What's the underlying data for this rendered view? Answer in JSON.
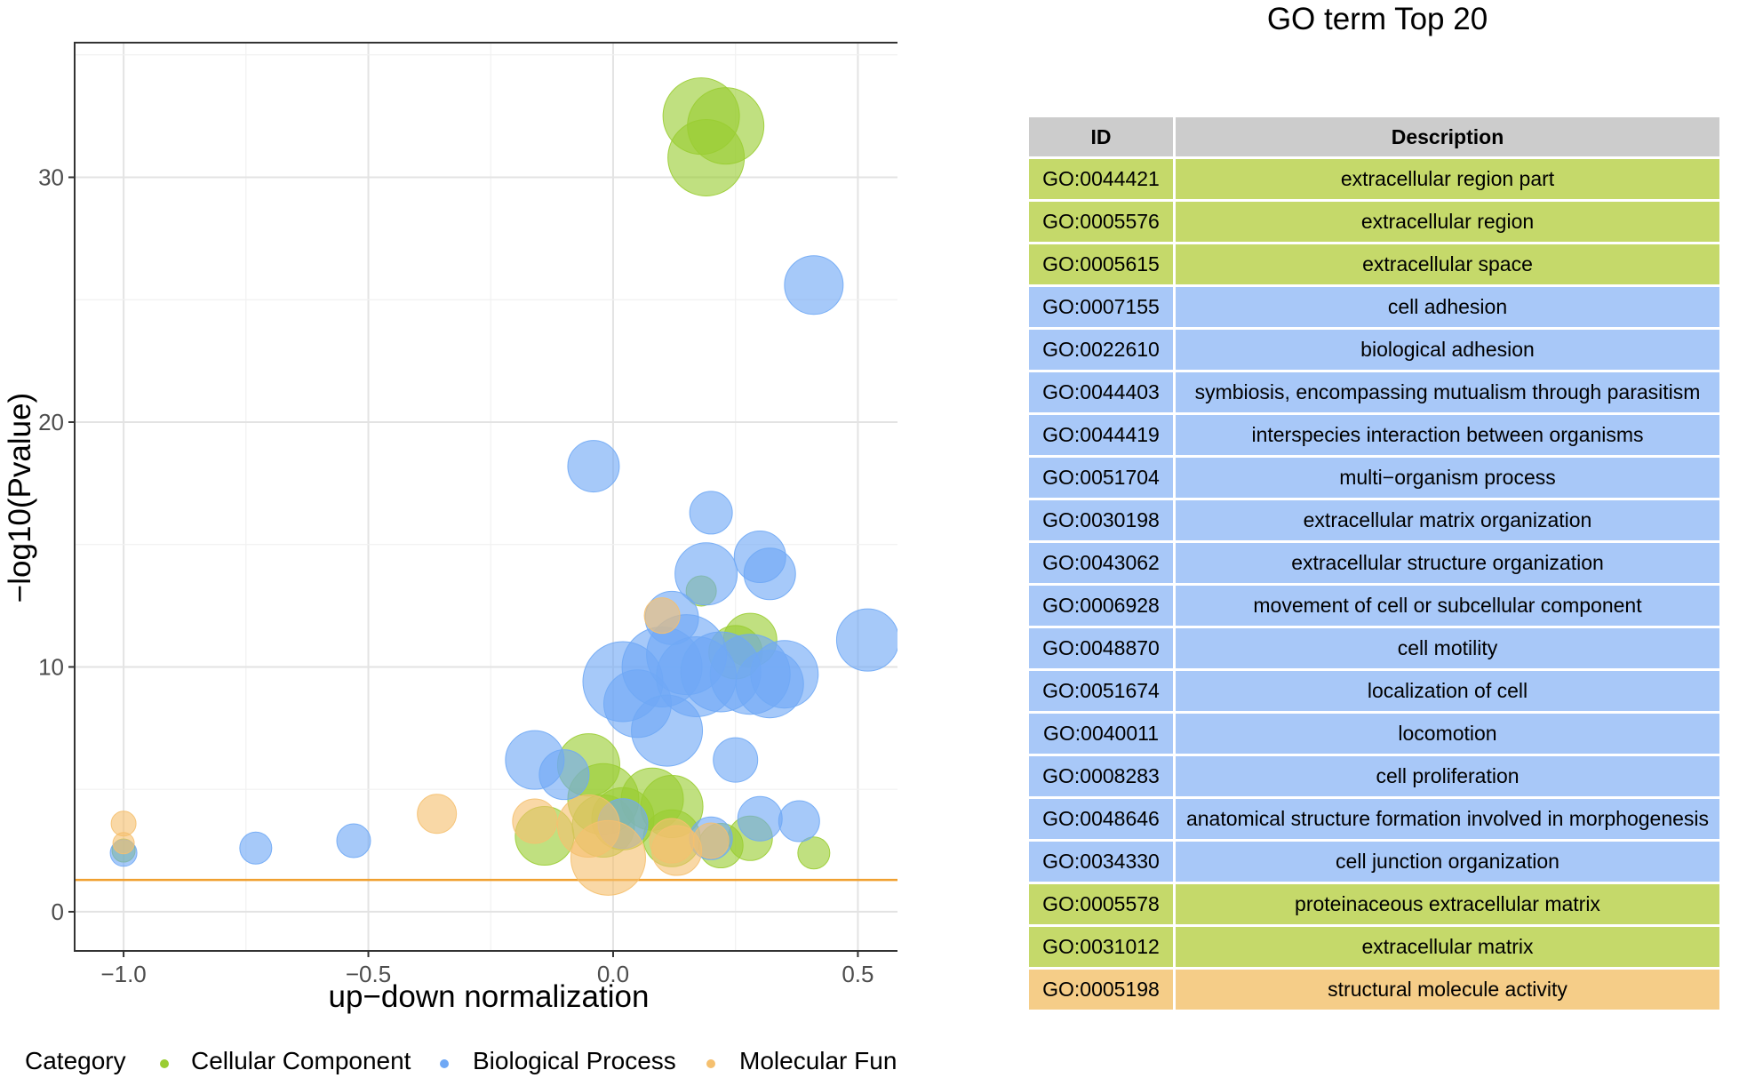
{
  "chart_data": {
    "type": "scatter",
    "xlabel": "up−down normalization",
    "ylabel": "−log10(Pvalue)",
    "xlim": [
      -1.1,
      0.59
    ],
    "ylim": [
      -1.6,
      35.5
    ],
    "x_ticks": [
      -1.0,
      -0.5,
      0.0,
      0.5
    ],
    "x_tick_labels": [
      "−1.0",
      "−0.5",
      "0.0",
      "0.5"
    ],
    "y_ticks": [
      0,
      10,
      20,
      30
    ],
    "y_tick_labels": [
      "0",
      "10",
      "20",
      "30"
    ],
    "threshold_line": {
      "y": 1.3,
      "color": "#f0a030"
    },
    "grid": true,
    "legend": {
      "title": "Category",
      "placement": "bottom",
      "entries": [
        {
          "label": "Cellular Component",
          "color": "#9acd32"
        },
        {
          "label": "Biological Process",
          "color": "#6fa8f5"
        },
        {
          "label": "Molecular Function",
          "color": "#f5c06f"
        }
      ]
    },
    "series": [
      {
        "name": "Cellular Component",
        "color": "#9acd32",
        "points": [
          {
            "x": 0.18,
            "y": 32.5,
            "size": 43
          },
          {
            "x": 0.23,
            "y": 32.1,
            "size": 43
          },
          {
            "x": 0.19,
            "y": 30.8,
            "size": 43
          },
          {
            "x": 0.18,
            "y": 13.1,
            "size": 17
          },
          {
            "x": 0.28,
            "y": 11.1,
            "size": 30
          },
          {
            "x": 0.25,
            "y": 10.6,
            "size": 30
          },
          {
            "x": -0.05,
            "y": 6.0,
            "size": 35
          },
          {
            "x": -0.02,
            "y": 4.6,
            "size": 40
          },
          {
            "x": 0.08,
            "y": 4.6,
            "size": 35
          },
          {
            "x": 0.12,
            "y": 4.3,
            "size": 35
          },
          {
            "x": 0.02,
            "y": 3.8,
            "size": 35
          },
          {
            "x": -0.14,
            "y": 3.1,
            "size": 33
          },
          {
            "x": 0.28,
            "y": 3.0,
            "size": 25
          },
          {
            "x": 0.12,
            "y": 3.0,
            "size": 32
          },
          {
            "x": 0.22,
            "y": 2.7,
            "size": 25
          },
          {
            "x": 0.41,
            "y": 2.4,
            "size": 18
          },
          {
            "x": -1.0,
            "y": 2.5,
            "size": 13
          },
          {
            "x": -0.02,
            "y": 3.5,
            "size": 35
          }
        ]
      },
      {
        "name": "Biological Process",
        "color": "#6fa8f5",
        "points": [
          {
            "x": 0.41,
            "y": 25.6,
            "size": 33
          },
          {
            "x": -0.04,
            "y": 18.2,
            "size": 29
          },
          {
            "x": 0.2,
            "y": 16.3,
            "size": 24
          },
          {
            "x": 0.3,
            "y": 14.5,
            "size": 29
          },
          {
            "x": 0.32,
            "y": 13.8,
            "size": 29
          },
          {
            "x": 0.19,
            "y": 13.8,
            "size": 35
          },
          {
            "x": 0.52,
            "y": 11.1,
            "size": 35
          },
          {
            "x": 0.02,
            "y": 9.4,
            "size": 45
          },
          {
            "x": 0.05,
            "y": 8.5,
            "size": 38
          },
          {
            "x": 0.1,
            "y": 10.0,
            "size": 45
          },
          {
            "x": 0.15,
            "y": 10.5,
            "size": 45
          },
          {
            "x": 0.17,
            "y": 9.6,
            "size": 45
          },
          {
            "x": 0.22,
            "y": 9.8,
            "size": 45
          },
          {
            "x": 0.28,
            "y": 9.7,
            "size": 45
          },
          {
            "x": 0.32,
            "y": 9.3,
            "size": 38
          },
          {
            "x": 0.35,
            "y": 9.7,
            "size": 38
          },
          {
            "x": 0.12,
            "y": 12.0,
            "size": 30
          },
          {
            "x": 0.11,
            "y": 7.4,
            "size": 40
          },
          {
            "x": 0.25,
            "y": 6.2,
            "size": 25
          },
          {
            "x": -0.16,
            "y": 6.2,
            "size": 33
          },
          {
            "x": -0.1,
            "y": 5.6,
            "size": 28
          },
          {
            "x": 0.3,
            "y": 3.8,
            "size": 25
          },
          {
            "x": 0.38,
            "y": 3.7,
            "size": 23
          },
          {
            "x": 0.02,
            "y": 3.6,
            "size": 28
          },
          {
            "x": 0.2,
            "y": 3.0,
            "size": 24
          },
          {
            "x": -0.73,
            "y": 2.6,
            "size": 18
          },
          {
            "x": -0.53,
            "y": 2.9,
            "size": 19
          },
          {
            "x": -1.0,
            "y": 2.4,
            "size": 15
          }
        ]
      },
      {
        "name": "Molecular Function",
        "color": "#f5c06f",
        "points": [
          {
            "x": -1.0,
            "y": 3.6,
            "size": 14
          },
          {
            "x": -1.0,
            "y": 2.8,
            "size": 12
          },
          {
            "x": -0.36,
            "y": 4.0,
            "size": 22
          },
          {
            "x": -0.16,
            "y": 3.7,
            "size": 25
          },
          {
            "x": 0.1,
            "y": 12.1,
            "size": 20
          },
          {
            "x": -0.01,
            "y": 2.2,
            "size": 42
          },
          {
            "x": -0.05,
            "y": 3.5,
            "size": 35
          },
          {
            "x": 0.12,
            "y": 2.9,
            "size": 25
          },
          {
            "x": 0.13,
            "y": 2.5,
            "size": 28
          },
          {
            "x": 0.2,
            "y": 2.9,
            "size": 20
          }
        ]
      }
    ]
  },
  "table": {
    "title": "GO term Top 20",
    "headers": {
      "id": "ID",
      "description": "Description"
    },
    "rows": [
      {
        "id": "GO:0044421",
        "description": "extracellular region part",
        "category": "Cellular Component"
      },
      {
        "id": "GO:0005576",
        "description": "extracellular region",
        "category": "Cellular Component"
      },
      {
        "id": "GO:0005615",
        "description": "extracellular space",
        "category": "Cellular Component"
      },
      {
        "id": "GO:0007155",
        "description": "cell adhesion",
        "category": "Biological Process"
      },
      {
        "id": "GO:0022610",
        "description": "biological adhesion",
        "category": "Biological Process"
      },
      {
        "id": "GO:0044403",
        "description": "symbiosis, encompassing mutualism through parasitism",
        "category": "Biological Process"
      },
      {
        "id": "GO:0044419",
        "description": "interspecies interaction between organisms",
        "category": "Biological Process"
      },
      {
        "id": "GO:0051704",
        "description": "multi−organism process",
        "category": "Biological Process"
      },
      {
        "id": "GO:0030198",
        "description": "extracellular matrix organization",
        "category": "Biological Process"
      },
      {
        "id": "GO:0043062",
        "description": "extracellular structure organization",
        "category": "Biological Process"
      },
      {
        "id": "GO:0006928",
        "description": "movement of cell or subcellular component",
        "category": "Biological Process"
      },
      {
        "id": "GO:0048870",
        "description": "cell motility",
        "category": "Biological Process"
      },
      {
        "id": "GO:0051674",
        "description": "localization of cell",
        "category": "Biological Process"
      },
      {
        "id": "GO:0040011",
        "description": "locomotion",
        "category": "Biological Process"
      },
      {
        "id": "GO:0008283",
        "description": "cell proliferation",
        "category": "Biological Process"
      },
      {
        "id": "GO:0048646",
        "description": "anatomical structure formation involved in morphogenesis",
        "category": "Biological Process"
      },
      {
        "id": "GO:0034330",
        "description": "cell junction organization",
        "category": "Biological Process"
      },
      {
        "id": "GO:0005578",
        "description": "proteinaceous extracellular matrix",
        "category": "Cellular Component"
      },
      {
        "id": "GO:0031012",
        "description": "extracellular matrix",
        "category": "Cellular Component"
      },
      {
        "id": "GO:0005198",
        "description": "structural molecule activity",
        "category": "Molecular Function"
      }
    ],
    "row_colors": {
      "Cellular Component": "#c5d96a",
      "Biological Process": "#a8c8f8",
      "Molecular Function": "#f5cd88"
    }
  }
}
